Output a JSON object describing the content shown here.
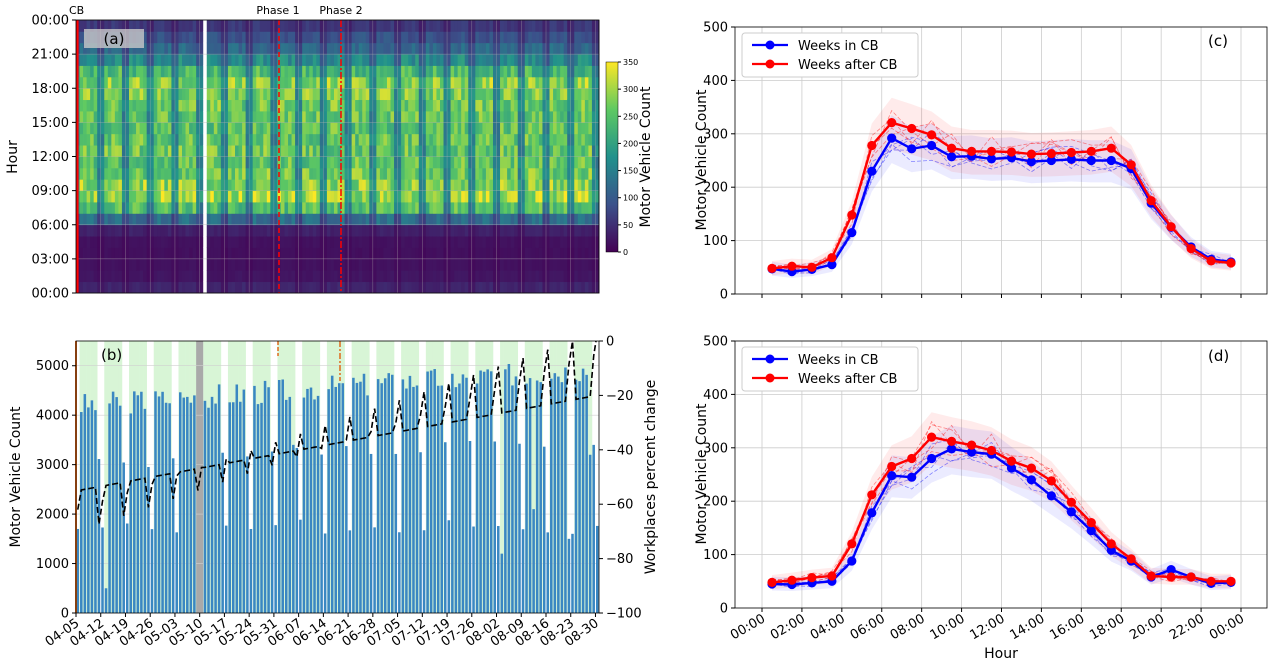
{
  "colors": {
    "blue": "#1f77b4",
    "bar_blue": "#3a87c2",
    "red": "#ff0000",
    "green_bg": "#d8f5d6",
    "gray_band": "#a9a9a9",
    "cb_orange": "#e06a1a",
    "viridis": [
      "#440154",
      "#3b528b",
      "#21918c",
      "#5ec962",
      "#fde725"
    ]
  },
  "chart_data": [
    {
      "id": "a",
      "type": "heatmap",
      "panel_label": "(a)",
      "ylabel": "Hour",
      "yticks": [
        "00:00",
        "03:00",
        "06:00",
        "09:00",
        "12:00",
        "15:00",
        "18:00",
        "21:00",
        "00:00"
      ],
      "colorbar": {
        "label": "Motor Vehicle Count",
        "ticks": [
          0,
          50,
          100,
          150,
          200,
          250,
          300,
          350
        ],
        "range": [
          0,
          350
        ]
      },
      "annotations": [
        "CB",
        "Phase 1",
        "Phase 2"
      ],
      "days": 148,
      "hourly_profile_weekday": [
        40,
        22,
        18,
        16,
        18,
        35,
        130,
        250,
        300,
        290,
        270,
        260,
        265,
        260,
        255,
        260,
        270,
        280,
        290,
        240,
        170,
        120,
        90,
        60
      ],
      "weekend_scale": 0.6,
      "gap_day": 36
    },
    {
      "id": "b",
      "type": "bar",
      "panel_label": "(b)",
      "ylabel": "Motor Vehicle Count",
      "y2label": "Workplaces percent change",
      "ylim": [
        0,
        5500
      ],
      "yticks": [
        0,
        1000,
        2000,
        3000,
        4000,
        5000
      ],
      "y2lim": [
        -100,
        0
      ],
      "y2ticks": [
        -100,
        -80,
        -60,
        -40,
        -20,
        0
      ],
      "xticks": [
        "04-05",
        "04-12",
        "04-19",
        "04-26",
        "05-03",
        "05-10",
        "05-17",
        "05-24",
        "05-31",
        "06-07",
        "06-14",
        "06-21",
        "06-28",
        "07-05",
        "07-12",
        "07-19",
        "07-26",
        "08-02",
        "08-09",
        "08-16",
        "08-23",
        "08-30"
      ],
      "days": 148,
      "weekday_trend": {
        "start": 4200,
        "end": 4950
      },
      "weekend_values": [
        2800,
        1600
      ],
      "low_days": [
        [
          8,
          500
        ],
        [
          61,
          3400
        ],
        [
          120,
          1200
        ],
        [
          129,
          2100
        ],
        [
          139,
          1500
        ],
        [
          145,
          3200
        ]
      ],
      "mobility_weekday_start": -55,
      "mobility_weekday_end": -20,
      "mobility_weekend_start": -70,
      "mobility_weekend_end": -5
    },
    {
      "id": "c",
      "type": "line",
      "panel_label": "(c)",
      "xlabel": "",
      "ylabel": "Motor Vehicle Count",
      "ylim": [
        0,
        500
      ],
      "yticks": [
        0,
        100,
        200,
        300,
        400,
        500
      ],
      "x": [
        0.5,
        1.5,
        2.5,
        3.5,
        4.5,
        5.5,
        6.5,
        7.5,
        8.5,
        9.5,
        10.5,
        11.5,
        12.5,
        13.5,
        14.5,
        15.5,
        16.5,
        17.5,
        18.5,
        19.5,
        20.5,
        21.5,
        22.5,
        23.5
      ],
      "legend": [
        "Weeks in CB",
        "Weeks after CB"
      ],
      "series": [
        {
          "name": "Weeks in CB",
          "values": [
            47,
            42,
            46,
            55,
            115,
            230,
            292,
            272,
            278,
            257,
            258,
            253,
            255,
            248,
            250,
            252,
            250,
            250,
            235,
            170,
            125,
            88,
            65,
            60
          ]
        },
        {
          "name": "Weeks after CB",
          "values": [
            48,
            52,
            50,
            68,
            148,
            278,
            321,
            310,
            298,
            273,
            267,
            267,
            266,
            262,
            263,
            265,
            267,
            273,
            242,
            175,
            126,
            85,
            62,
            58
          ]
        }
      ]
    },
    {
      "id": "d",
      "type": "line",
      "panel_label": "(d)",
      "xlabel": "Hour",
      "ylabel": "Motor Vehicle Count",
      "ylim": [
        0,
        500
      ],
      "yticks": [
        0,
        100,
        200,
        300,
        400,
        500
      ],
      "xticks": [
        "00:00",
        "02:00",
        "04:00",
        "06:00",
        "08:00",
        "10:00",
        "12:00",
        "14:00",
        "16:00",
        "18:00",
        "20:00",
        "22:00",
        "00:00"
      ],
      "x": [
        0.5,
        1.5,
        2.5,
        3.5,
        4.5,
        5.5,
        6.5,
        7.5,
        8.5,
        9.5,
        10.5,
        11.5,
        12.5,
        13.5,
        14.5,
        15.5,
        16.5,
        17.5,
        18.5,
        19.5,
        20.5,
        21.5,
        22.5,
        23.5
      ],
      "legend": [
        "Weeks in CB",
        "Weeks after CB"
      ],
      "series": [
        {
          "name": "Weeks in CB",
          "values": [
            45,
            44,
            47,
            50,
            88,
            178,
            248,
            245,
            280,
            298,
            292,
            288,
            262,
            240,
            210,
            180,
            145,
            108,
            88,
            58,
            72,
            58,
            46,
            48
          ]
        },
        {
          "name": "Weeks after CB",
          "values": [
            48,
            52,
            57,
            60,
            120,
            212,
            265,
            280,
            320,
            312,
            305,
            295,
            275,
            262,
            238,
            198,
            160,
            120,
            92,
            60,
            58,
            58,
            50,
            50
          ]
        }
      ]
    }
  ]
}
